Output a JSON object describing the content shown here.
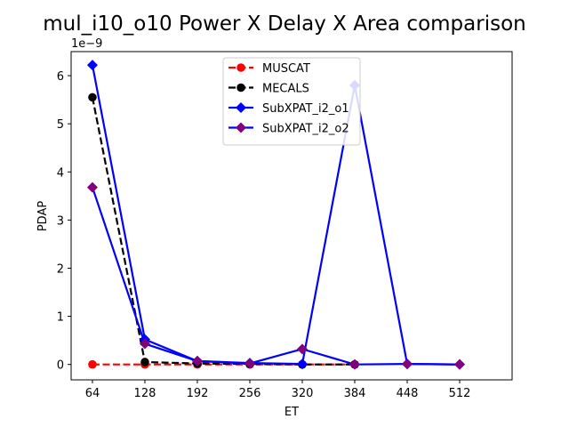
{
  "chart_data": {
    "type": "line",
    "title": "mul_i10_o10 Power X Delay X Area comparison",
    "xlabel": "ET",
    "ylabel": "PDAP",
    "y_scale_label": "1e−9",
    "x": [
      64,
      128,
      192,
      256,
      320,
      384,
      448,
      512
    ],
    "xticks": [
      64,
      128,
      192,
      256,
      320,
      384,
      448,
      512
    ],
    "xlim": [
      38,
      576
    ],
    "ylim": [
      -0.32,
      6.5
    ],
    "yticks": [
      0,
      1,
      2,
      3,
      4,
      5,
      6
    ],
    "legend_position": "top-center",
    "grid": false,
    "series": [
      {
        "name": "MUSCAT",
        "color": "#ff0000",
        "dash": "dashed",
        "marker": "circle",
        "x": [
          64,
          128,
          192,
          256,
          320,
          384
        ],
        "values": [
          0.0,
          0.0,
          0.0,
          0.0,
          0.0,
          0.0
        ]
      },
      {
        "name": "MECALS",
        "color": "#000000",
        "dash": "dashed",
        "marker": "circle",
        "x": [
          64,
          128,
          192,
          256,
          320,
          384
        ],
        "values": [
          5.55,
          0.05,
          0.02,
          0.01,
          0.0,
          0.0
        ]
      },
      {
        "name": "SubXPAT_i2_o1",
        "color": "#0000ff",
        "line_color": "#0000ff",
        "dash": "solid",
        "marker": "diamond",
        "x": [
          64,
          128,
          192,
          256,
          320,
          384,
          448,
          512
        ],
        "values": [
          6.22,
          0.52,
          0.07,
          0.03,
          0.01,
          5.8,
          0.01,
          0.0
        ]
      },
      {
        "name": "SubXPAT_i2_o2",
        "color": "#800080",
        "line_color": "#0000ff",
        "dash": "solid",
        "marker": "diamond",
        "x": [
          64,
          128,
          192,
          256,
          320,
          384,
          448,
          512
        ],
        "values": [
          3.68,
          0.43,
          0.07,
          0.02,
          0.32,
          0.0,
          0.01,
          0.0
        ]
      }
    ]
  }
}
